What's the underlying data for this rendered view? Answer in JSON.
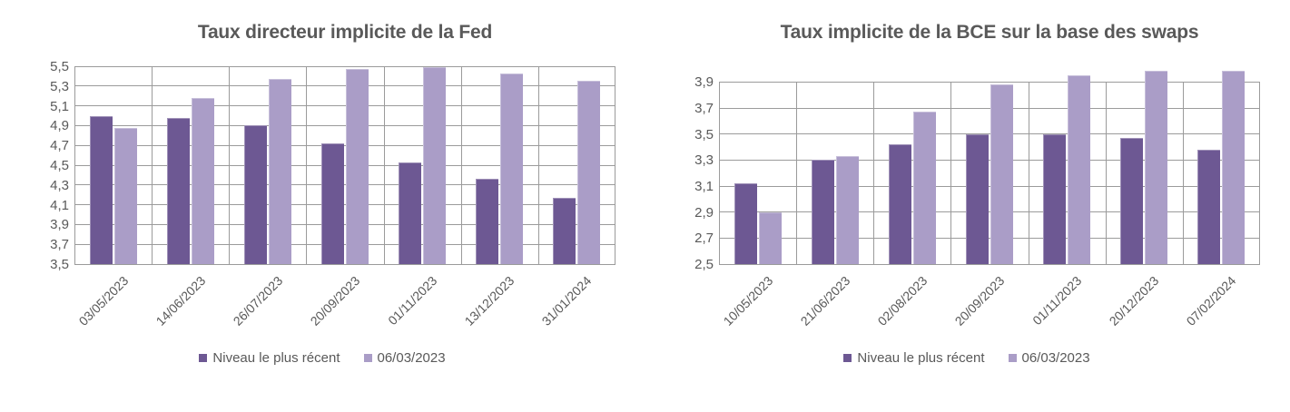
{
  "styles": {
    "title_color": "#595959",
    "label_color": "#595959",
    "grid_color": "#9b9b9b",
    "axis_color": "#7f7f7f",
    "series_dark_color": "#6d5893",
    "series_light_color": "#aa9dc7",
    "background": "#ffffff"
  },
  "chart_data": [
    {
      "type": "bar",
      "title": "Taux directeur implicite de la Fed",
      "categories": [
        "03/05/2023",
        "14/06/2023",
        "26/07/2023",
        "20/09/2023",
        "01/11/2023",
        "13/12/2023",
        "31/01/2024"
      ],
      "series": [
        {
          "name": "Niveau le plus récent",
          "color": "#6d5893",
          "values": [
            5.0,
            4.98,
            4.9,
            4.72,
            4.53,
            4.36,
            4.17
          ]
        },
        {
          "name": "06/03/2023",
          "color": "#aa9dc7",
          "values": [
            4.88,
            5.18,
            5.37,
            5.47,
            5.49,
            5.43,
            5.35
          ]
        }
      ],
      "ylim": [
        3.5,
        5.5
      ],
      "yticks": [
        3.5,
        3.7,
        3.9,
        4.1,
        4.3,
        4.5,
        4.7,
        4.9,
        5.1,
        5.3,
        5.5
      ],
      "ytick_decimal_separator": ",",
      "grid": true,
      "legend_position": "bottom"
    },
    {
      "type": "bar",
      "title": "Taux implicite de la BCE sur la base des swaps",
      "categories": [
        "10/05/2023",
        "21/06/2023",
        "02/08/2023",
        "20/09/2023",
        "01/11/2023",
        "20/12/2023",
        "07/02/2024"
      ],
      "series": [
        {
          "name": "Niveau le plus récent",
          "color": "#6d5893",
          "values": [
            3.12,
            3.3,
            3.42,
            3.5,
            3.5,
            3.47,
            3.38
          ]
        },
        {
          "name": "06/03/2023",
          "color": "#aa9dc7",
          "values": [
            2.9,
            3.33,
            3.67,
            3.88,
            3.95,
            3.99,
            3.99
          ]
        }
      ],
      "ylim": [
        2.5,
        4.05
      ],
      "yticks": [
        2.5,
        2.7,
        2.9,
        3.1,
        3.3,
        3.5,
        3.7,
        3.9
      ],
      "ytick_decimal_separator": ",",
      "grid": true,
      "legend_position": "bottom"
    }
  ]
}
